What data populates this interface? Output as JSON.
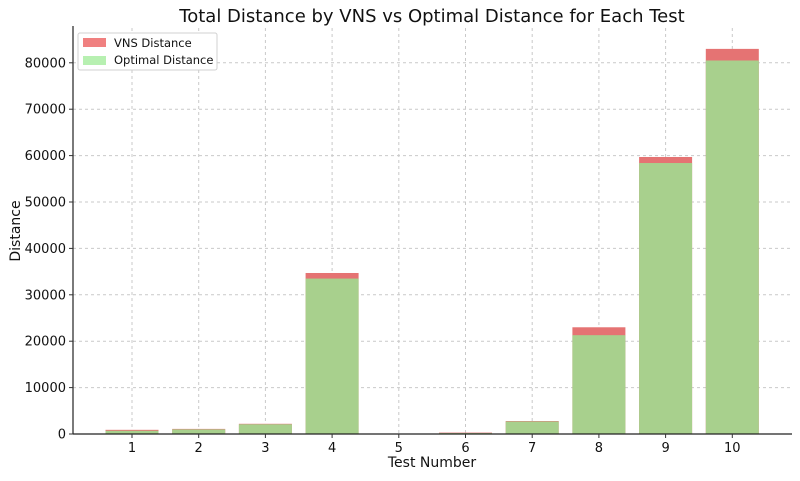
{
  "chart_data": {
    "type": "bar",
    "title": "Total Distance by VNS vs Optimal Distance for Each Test",
    "xlabel": "Test Number",
    "ylabel": "Distance",
    "categories": [
      "1",
      "2",
      "3",
      "4",
      "5",
      "6",
      "7",
      "8",
      "9",
      "10"
    ],
    "ylim": [
      0,
      87500
    ],
    "yticks": [
      "0",
      "10000",
      "20000",
      "30000",
      "40000",
      "50000",
      "60000",
      "70000",
      "80000"
    ],
    "grid": true,
    "legend_placement": "top-left",
    "series": [
      {
        "name": "VNS Distance",
        "color": "#e57373",
        "values": [
          900,
          1100,
          2200,
          34700,
          100,
          300,
          2800,
          23000,
          59700,
          83000
        ]
      },
      {
        "name": "Optimal Distance",
        "color": "#a8d08d",
        "values": [
          700,
          1000,
          2100,
          33500,
          80,
          200,
          2700,
          21300,
          58400,
          80500
        ]
      }
    ],
    "legend_colors": [
      "#f08080",
      "#b7f0b1"
    ]
  }
}
